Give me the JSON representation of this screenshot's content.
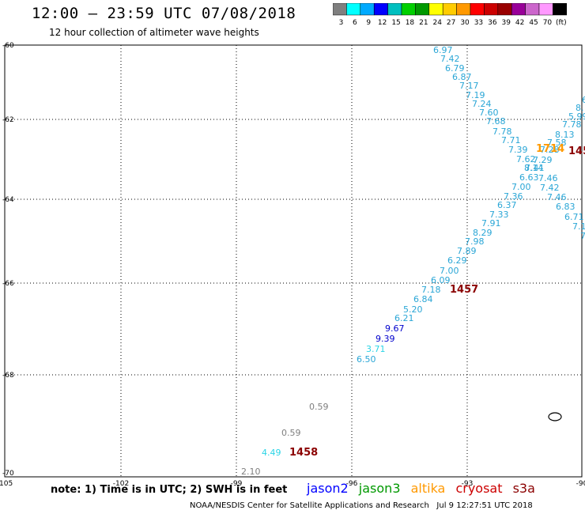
{
  "header": {
    "title": "12:00 – 23:59 UTC 07/08/2018",
    "subtitle": "12 hour collection of altimeter wave heights"
  },
  "colorbar": {
    "colors": [
      "#7f7f7f",
      "#00ffff",
      "#00aaff",
      "#0000ff",
      "#00bfbf",
      "#00d000",
      "#009900",
      "#ffff00",
      "#ffcc00",
      "#ff9900",
      "#ff0000",
      "#cc0000",
      "#990000",
      "#990099",
      "#cc66cc",
      "#ff99ff",
      "#000000"
    ],
    "labels": [
      "3",
      "6",
      "9",
      "12",
      "15",
      "18",
      "21",
      "24",
      "27",
      "30",
      "33",
      "36",
      "39",
      "42",
      "45",
      "70",
      "(ft)"
    ]
  },
  "axes": {
    "lat_ticks": [
      "-60",
      "-62",
      "-64",
      "-66",
      "-68",
      "-70"
    ],
    "lon_ticks": [
      "-105",
      "-102",
      "-99",
      "-96",
      "-93",
      "-90"
    ]
  },
  "passes": [
    {
      "label": "1457",
      "color": "#8b0000"
    },
    {
      "label": "1458",
      "color": "#8b0000"
    },
    {
      "label": "1714",
      "color": "#ff9900"
    },
    {
      "label": "145",
      "color": "#8b0000"
    }
  ],
  "track_values": [
    {
      "v": "6.97",
      "c": "#2aa6d6"
    },
    {
      "v": "7.42",
      "c": "#2aa6d6"
    },
    {
      "v": "6.79",
      "c": "#2aa6d6"
    },
    {
      "v": "6.87",
      "c": "#2aa6d6"
    },
    {
      "v": "7.17",
      "c": "#2aa6d6"
    },
    {
      "v": "7.19",
      "c": "#2aa6d6"
    },
    {
      "v": "7.24",
      "c": "#2aa6d6"
    },
    {
      "v": "7.60",
      "c": "#2aa6d6"
    },
    {
      "v": "7.68",
      "c": "#2aa6d6"
    },
    {
      "v": "7.78",
      "c": "#2aa6d6"
    },
    {
      "v": "7.71",
      "c": "#2aa6d6"
    },
    {
      "v": "7.39",
      "c": "#2aa6d6"
    },
    {
      "v": "7.62",
      "c": "#2aa6d6"
    },
    {
      "v": "8.14",
      "c": "#2aa6d6"
    },
    {
      "v": "6.63",
      "c": "#2aa6d6"
    },
    {
      "v": "7.00",
      "c": "#2aa6d6"
    },
    {
      "v": "7.36",
      "c": "#2aa6d6"
    },
    {
      "v": "6.37",
      "c": "#2aa6d6"
    },
    {
      "v": "7.33",
      "c": "#2aa6d6"
    },
    {
      "v": "7.91",
      "c": "#2aa6d6"
    },
    {
      "v": "8.29",
      "c": "#2aa6d6"
    },
    {
      "v": "7.98",
      "c": "#2aa6d6"
    },
    {
      "v": "7.89",
      "c": "#2aa6d6"
    },
    {
      "v": "6.29",
      "c": "#2aa6d6"
    },
    {
      "v": "7.00",
      "c": "#2aa6d6"
    },
    {
      "v": "6.09",
      "c": "#2aa6d6"
    },
    {
      "v": "7.18",
      "c": "#2aa6d6"
    },
    {
      "v": "6.84",
      "c": "#2aa6d6"
    },
    {
      "v": "5.20",
      "c": "#2aa6d6"
    },
    {
      "v": "6.21",
      "c": "#2aa6d6"
    },
    {
      "v": "9.67",
      "c": "#0000cc"
    },
    {
      "v": "9.39",
      "c": "#0000cc"
    },
    {
      "v": "3.71",
      "c": "#2ad4e6"
    },
    {
      "v": "6.50",
      "c": "#2aa6d6"
    },
    {
      "v": "6",
      "c": "#2aa6d6"
    },
    {
      "v": "8.",
      "c": "#2aa6d6"
    },
    {
      "v": "5.99",
      "c": "#2aa6d6"
    },
    {
      "v": "7.78",
      "c": "#2aa6d6"
    },
    {
      "v": "8.13",
      "c": "#2aa6d6"
    },
    {
      "v": "7.58",
      "c": "#2aa6d6"
    },
    {
      "v": "7.28",
      "c": "#2aa6d6"
    },
    {
      "v": "7.29",
      "c": "#2aa6d6"
    },
    {
      "v": "7.41",
      "c": "#2aa6d6"
    },
    {
      "v": "7.46",
      "c": "#2aa6d6"
    },
    {
      "v": "7.42",
      "c": "#2aa6d6"
    },
    {
      "v": "7.46",
      "c": "#2aa6d6"
    },
    {
      "v": "6.83",
      "c": "#2aa6d6"
    },
    {
      "v": "6.71",
      "c": "#2aa6d6"
    },
    {
      "v": "7.1",
      "c": "#2aa6d6"
    },
    {
      "v": "7",
      "c": "#2aa6d6"
    },
    {
      "v": "0.59",
      "c": "#7f7f7f"
    },
    {
      "v": "0.59",
      "c": "#7f7f7f"
    },
    {
      "v": "4.49",
      "c": "#2ad4e6"
    },
    {
      "v": "2.10",
      "c": "#7f7f7f"
    }
  ],
  "footer": {
    "note": "note: 1) Time is in UTC; 2) SWH is in feet",
    "legend": [
      {
        "name": "jason2",
        "color": "#0000ff"
      },
      {
        "name": "jason3",
        "color": "#009900"
      },
      {
        "name": "altika",
        "color": "#ff9900"
      },
      {
        "name": "cryosat",
        "color": "#cc0000"
      },
      {
        "name": "s3a",
        "color": "#8b0000"
      }
    ],
    "credit": "NOAA/NESDIS Center for Satellite Applications and Research",
    "timestamp": "Jul  9 12:27:51 UTC 2018"
  }
}
